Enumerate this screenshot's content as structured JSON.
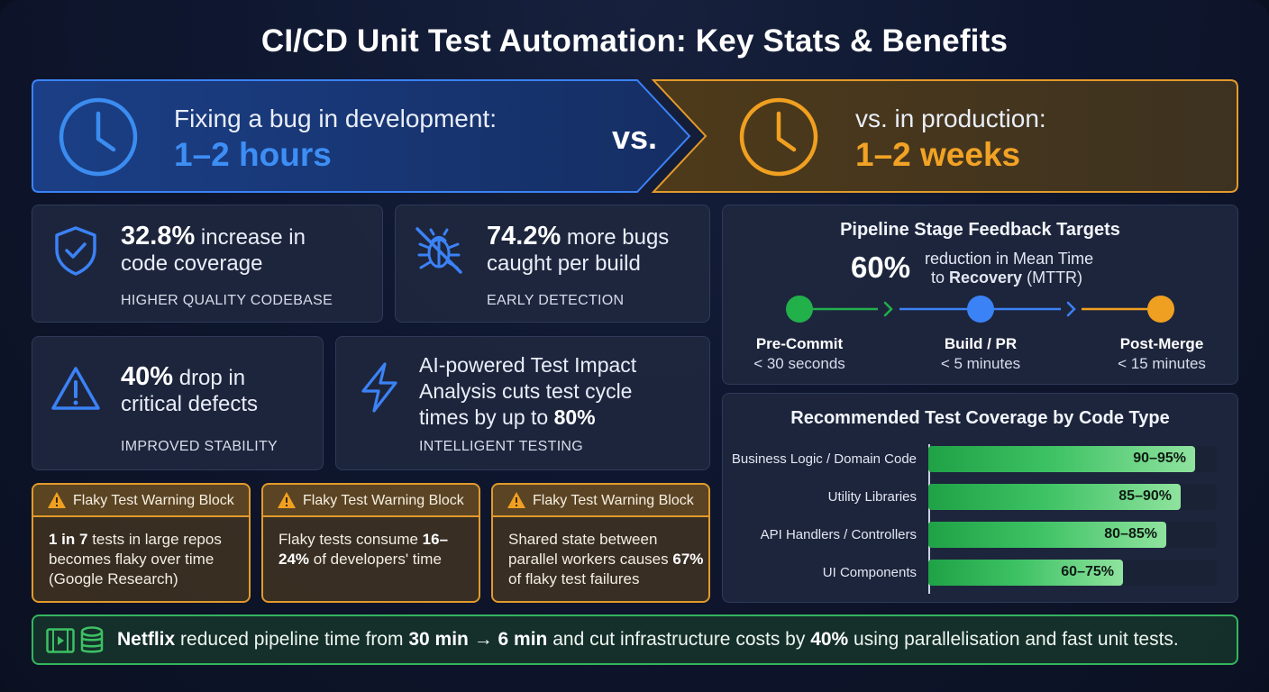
{
  "title": "CI/CD Unit Test Automation: Key Stats & Benefits",
  "comparison": {
    "dev_label": "Fixing a bug in development:",
    "dev_value": "1–2 hours",
    "vs": "vs.",
    "prod_label": "vs. in production:",
    "prod_value": "1–2 weeks",
    "dev_color": "#3b8cf0",
    "prod_color": "#f0a020"
  },
  "stats": {
    "coverage": {
      "value": "32.8%",
      "text1": " increase in",
      "text2": "code coverage",
      "sub": "HIGHER QUALITY CODEBASE",
      "icon": "shield-check-icon"
    },
    "bugs": {
      "value": "74.2%",
      "text1": " more bugs",
      "text2": "caught per build",
      "sub": "EARLY DETECTION",
      "icon": "bug-icon"
    },
    "defects": {
      "value": "40%",
      "text1": " drop in",
      "text2": "critical defects",
      "sub": "IMPROVED STABILITY",
      "icon": "warning-icon"
    },
    "ai": {
      "line1": "AI-powered Test Impact",
      "line2": "Analysis cuts test cycle",
      "line3_pre": "times by up to ",
      "line3_bold": "80%",
      "sub": "INTELLIGENT TESTING",
      "icon": "lightning-icon"
    }
  },
  "pipeline": {
    "title": "Pipeline Stage Feedback Targets",
    "mttr_value": "60%",
    "mttr_line1": "reduction in Mean Time",
    "mttr_line2_pre": "to ",
    "mttr_line2_bold": "Recovery",
    "mttr_line2_post": " (MTTR)",
    "stages": [
      {
        "name": "Pre-Commit",
        "time": "< 30 seconds",
        "color": "#22b04b"
      },
      {
        "name": "Build / PR",
        "time": "< 5 minutes",
        "color": "#3b82f6"
      },
      {
        "name": "Post-Merge",
        "time": "< 15 minutes",
        "color": "#f0a020"
      }
    ]
  },
  "coverage_panel": {
    "title": "Recommended Test Coverage by Code Type",
    "rows": [
      {
        "label": "Business Logic / Domain Code",
        "value": "90–95%",
        "fill": 0.925
      },
      {
        "label": "Utility Libraries",
        "value": "85–90%",
        "fill": 0.875
      },
      {
        "label": "API Handlers / Controllers",
        "value": "80–85%",
        "fill": 0.825
      },
      {
        "label": "UI Components",
        "value": "60–75%",
        "fill": 0.675
      }
    ]
  },
  "warnings": [
    {
      "title": "Flaky Test Warning Block",
      "b1": "1 in 7",
      "t1": " tests in large repos becomes flaky over time (Google Research)",
      "b2": "",
      "t2": ""
    },
    {
      "title": "Flaky Test Warning Block",
      "b1": "",
      "t1": "Flaky tests consume ",
      "b2": "16–24%",
      "t2": " of developers' time"
    },
    {
      "title": "Flaky Test Warning Block",
      "b1": "",
      "t1": "Shared state between parallel workers causes ",
      "b2": "67%",
      "t2": " of flaky test failures"
    }
  ],
  "footer": {
    "b1": "Netflix",
    "t1": " reduced pipeline time from ",
    "b2": "30 min",
    "t2": " → ",
    "b3": "6 min",
    "t3": " and cut infrastructure costs by ",
    "b4": "40%",
    "t4": " using parallelisation and fast unit tests.",
    "icons": [
      "film-icon",
      "database-icon"
    ]
  }
}
